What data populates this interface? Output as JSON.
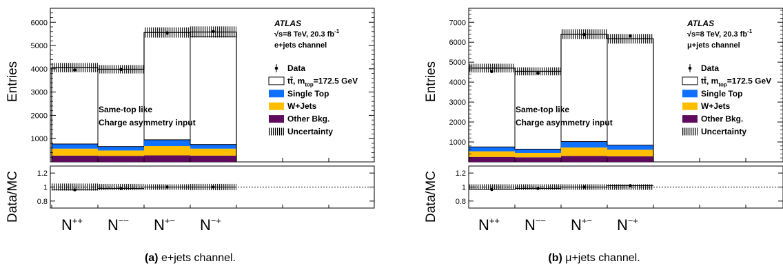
{
  "colors": {
    "data": "#000000",
    "ttbar": "#ffffff",
    "single_top": "#0f6fff",
    "wjets": "#ffbf00",
    "other_bkg": "#5e0b5e",
    "uncertainty": "#000000"
  },
  "chart_data": [
    {
      "type": "bar",
      "stacked": true,
      "panel_label": "(a)",
      "caption": "e+jets channel.",
      "categories": [
        "N++",
        "N−−",
        "N+−",
        "N−+"
      ],
      "category_display": [
        {
          "base": "N",
          "sup": "++"
        },
        {
          "base": "N",
          "sup": "−−"
        },
        {
          "base": "N",
          "sup": "+−"
        },
        {
          "base": "N",
          "sup": "−+"
        }
      ],
      "ylabel": "Entries",
      "ylim": [
        0,
        6600
      ],
      "yticks": [
        1000,
        2000,
        3000,
        4000,
        5000,
        6000
      ],
      "series": [
        {
          "name": "Other Bkg.",
          "key": "other_bkg",
          "values": [
            270,
            260,
            280,
            270
          ]
        },
        {
          "name": "W+Jets",
          "key": "wjets",
          "values": [
            300,
            230,
            400,
            300
          ]
        },
        {
          "name": "Single Top",
          "key": "single_top",
          "values": [
            200,
            170,
            270,
            180
          ]
        },
        {
          "name": "tt̄, m_top=172.5 GeV",
          "key": "ttbar",
          "values": [
            3280,
            3320,
            4610,
            4630
          ]
        }
      ],
      "mc_total": [
        4050,
        3980,
        5560,
        5580
      ],
      "uncertainty_halfwidth": [
        200,
        180,
        220,
        240
      ],
      "data": [
        3950,
        3970,
        5540,
        5600
      ],
      "data_errors": [
        63,
        63,
        74,
        75
      ],
      "ratio": {
        "ylabel": "Data/MC",
        "ylim": [
          0.7,
          1.3
        ],
        "yticks": [
          0.8,
          1,
          1.2
        ],
        "values": [
          0.96,
          0.98,
          1.0,
          1.0
        ],
        "uncertainty_halfwidth": [
          0.05,
          0.045,
          0.04,
          0.045
        ]
      },
      "atlas_label": "ATLAS",
      "energy_label": "√s=8 TeV, 20.3 fb",
      "lumi_exp": "-1",
      "channel_label": "e+jets channel",
      "text_lines": [
        "Same-top like",
        "Charge asymmetry input"
      ],
      "legend": [
        {
          "label": "Data",
          "kind": "data"
        },
        {
          "label": "tt̄, m",
          "sub": "top",
          "tail": "=172.5 GeV",
          "kind": "ttbar"
        },
        {
          "label": "Single Top",
          "kind": "single_top"
        },
        {
          "label": "W+Jets",
          "kind": "wjets"
        },
        {
          "label": "Other Bkg.",
          "kind": "other_bkg"
        },
        {
          "label": "Uncertainty",
          "kind": "uncertainty"
        }
      ]
    },
    {
      "type": "bar",
      "stacked": true,
      "panel_label": "(b)",
      "caption": "μ+jets channel.",
      "categories": [
        "N++",
        "N−−",
        "N+−",
        "N−+"
      ],
      "category_display": [
        {
          "base": "N",
          "sup": "++"
        },
        {
          "base": "N",
          "sup": "−−"
        },
        {
          "base": "N",
          "sup": "+−"
        },
        {
          "base": "N",
          "sup": "−+"
        }
      ],
      "ylabel": "Entries",
      "ylim": [
        0,
        7700
      ],
      "yticks": [
        1000,
        2000,
        3000,
        4000,
        5000,
        6000,
        7000
      ],
      "series": [
        {
          "name": "Other Bkg.",
          "key": "other_bkg",
          "values": [
            250,
            230,
            300,
            280
          ]
        },
        {
          "name": "W+Jets",
          "key": "wjets",
          "values": [
            280,
            220,
            420,
            330
          ]
        },
        {
          "name": "Single Top",
          "key": "single_top",
          "values": [
            220,
            190,
            300,
            230
          ]
        },
        {
          "name": "tt̄, m_top=172.5 GeV",
          "key": "ttbar",
          "values": [
            3950,
            3900,
            5380,
            5330
          ]
        }
      ],
      "mc_total": [
        4700,
        4540,
        6400,
        6170
      ],
      "uncertainty_halfwidth": [
        220,
        200,
        250,
        240
      ],
      "data": [
        4530,
        4440,
        6380,
        6310
      ],
      "data_errors": [
        67,
        67,
        80,
        79
      ],
      "ratio": {
        "ylabel": "Data/MC",
        "ylim": [
          0.7,
          1.3
        ],
        "yticks": [
          0.8,
          1,
          1.2
        ],
        "values": [
          0.965,
          0.98,
          1.0,
          1.02
        ],
        "uncertainty_halfwidth": [
          0.04,
          0.04,
          0.04,
          0.04
        ]
      },
      "atlas_label": "ATLAS",
      "energy_label": "√s=8 TeV, 20.3 fb",
      "lumi_exp": "-1",
      "channel_label": "μ+jets channel",
      "text_lines": [
        "Same-top like",
        "Charge asymmetry input"
      ],
      "legend": [
        {
          "label": "Data",
          "kind": "data"
        },
        {
          "label": "tt̄, m",
          "sub": "top",
          "tail": "=172.5 GeV",
          "kind": "ttbar"
        },
        {
          "label": "Single Top",
          "kind": "single_top"
        },
        {
          "label": "W+Jets",
          "kind": "wjets"
        },
        {
          "label": "Other Bkg.",
          "kind": "other_bkg"
        },
        {
          "label": "Uncertainty",
          "kind": "uncertainty"
        }
      ]
    }
  ]
}
